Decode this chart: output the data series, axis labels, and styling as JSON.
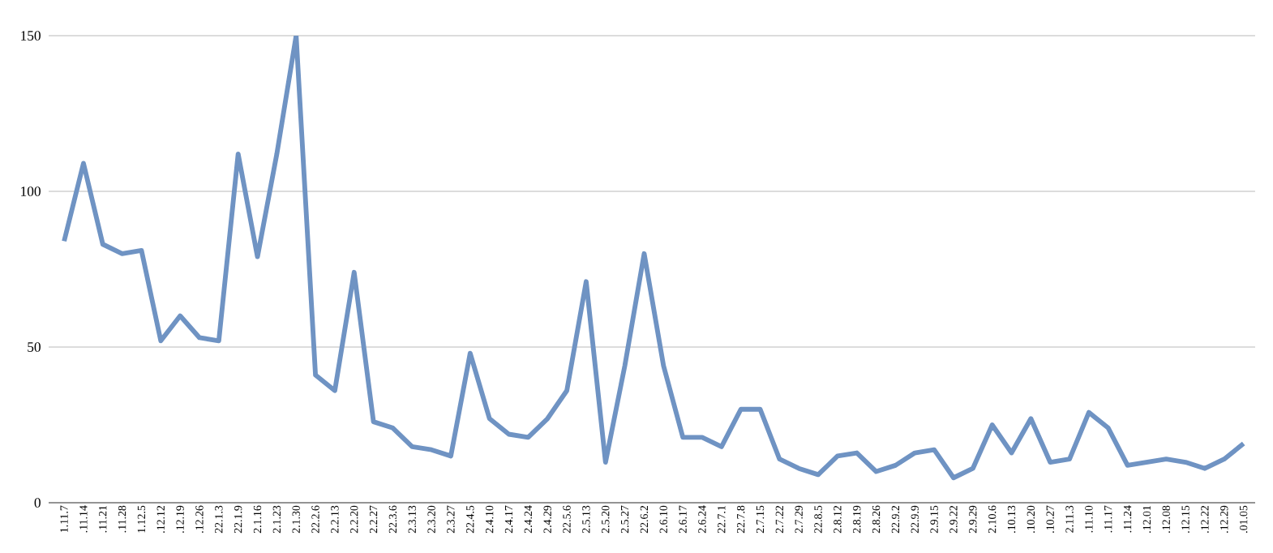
{
  "chart_data": {
    "type": "line",
    "categories": [
      "1.11.7",
      ".11.14",
      ".11.21",
      ".11.28",
      "1.12.5",
      ".12.12",
      ".12.19",
      ".12.26",
      "22.1.3",
      "22.1.9",
      "2.1.16",
      "2.1.23",
      "2.1.30",
      "22.2.6",
      "2.2.13",
      "2.2.20",
      "2.2.27",
      "22.3.6",
      "2.3.13",
      "2.3.20",
      "2.3.27",
      "22.4.5",
      "2.4.10",
      "2.4.17",
      "2.4.24",
      "2.4.29",
      "22.5.6",
      "2.5.13",
      "2.5.20",
      "2.5.27",
      "22.6.2",
      "2.6.10",
      "2.6.17",
      "2.6.24",
      "22.7.1",
      "22.7.8",
      "2.7.15",
      "2.7.22",
      "2.7.29",
      "22.8.5",
      "2.8.12",
      "2.8.19",
      "2.8.26",
      "22.9.2",
      "22.9.9",
      "2.9.15",
      "2.9.22",
      "2.9.29",
      "2.10.6",
      ".10.13",
      ".10.20",
      ".10.27",
      "2.11.3",
      ".11.10",
      ".11.17",
      ".11.24",
      ".12.01",
      ".12.08",
      ".12.15",
      ".12.22",
      ".12.29",
      ".01.05"
    ],
    "series": [
      {
        "color": "#6f93c3",
        "values": [
          84,
          109,
          83,
          80,
          81,
          52,
          60,
          53,
          52,
          112,
          79,
          112,
          150,
          41,
          36,
          74,
          26,
          24,
          18,
          17,
          15,
          48,
          27,
          22,
          21,
          27,
          36,
          71,
          13,
          44,
          80,
          44,
          21,
          21,
          18,
          30,
          30,
          14,
          11,
          9,
          15,
          16,
          10,
          12,
          16,
          17,
          8,
          11,
          25,
          16,
          27,
          13,
          14,
          29,
          24,
          12,
          13,
          14,
          13,
          11,
          14,
          19
        ]
      }
    ],
    "ylim": [
      0,
      150
    ],
    "yticks": [
      0,
      50,
      100,
      150
    ],
    "grid": "y",
    "marker": "none",
    "line_style": "solid"
  }
}
